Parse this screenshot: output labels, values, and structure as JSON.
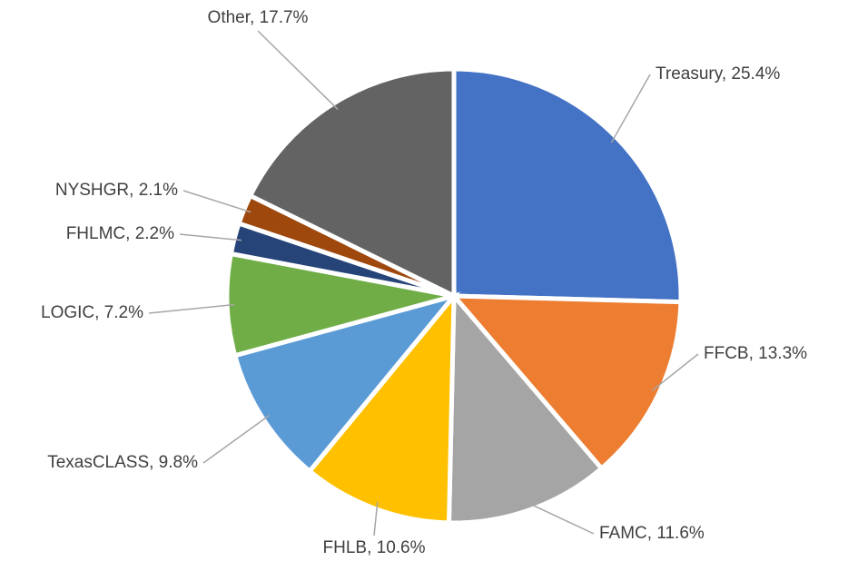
{
  "chart_data": {
    "type": "pie",
    "labels": [
      "Treasury, 25.4%",
      "FFCB, 13.3%",
      "FAMC, 11.6%",
      "FHLB, 10.6%",
      "TexasCLASS, 9.8%",
      "LOGIC, 7.2%",
      "FHLMC, 2.2%",
      "NYSHGR, 2.1%",
      "Other, 17.7%"
    ],
    "values": [
      25.4,
      13.3,
      11.6,
      10.6,
      9.8,
      7.2,
      2.2,
      2.1,
      17.7
    ],
    "colors": [
      "#4472c4",
      "#ed7d31",
      "#a5a5a5",
      "#ffc000",
      "#5b9bd5",
      "#70ad47",
      "#264478",
      "#9e480e",
      "#636363"
    ]
  }
}
